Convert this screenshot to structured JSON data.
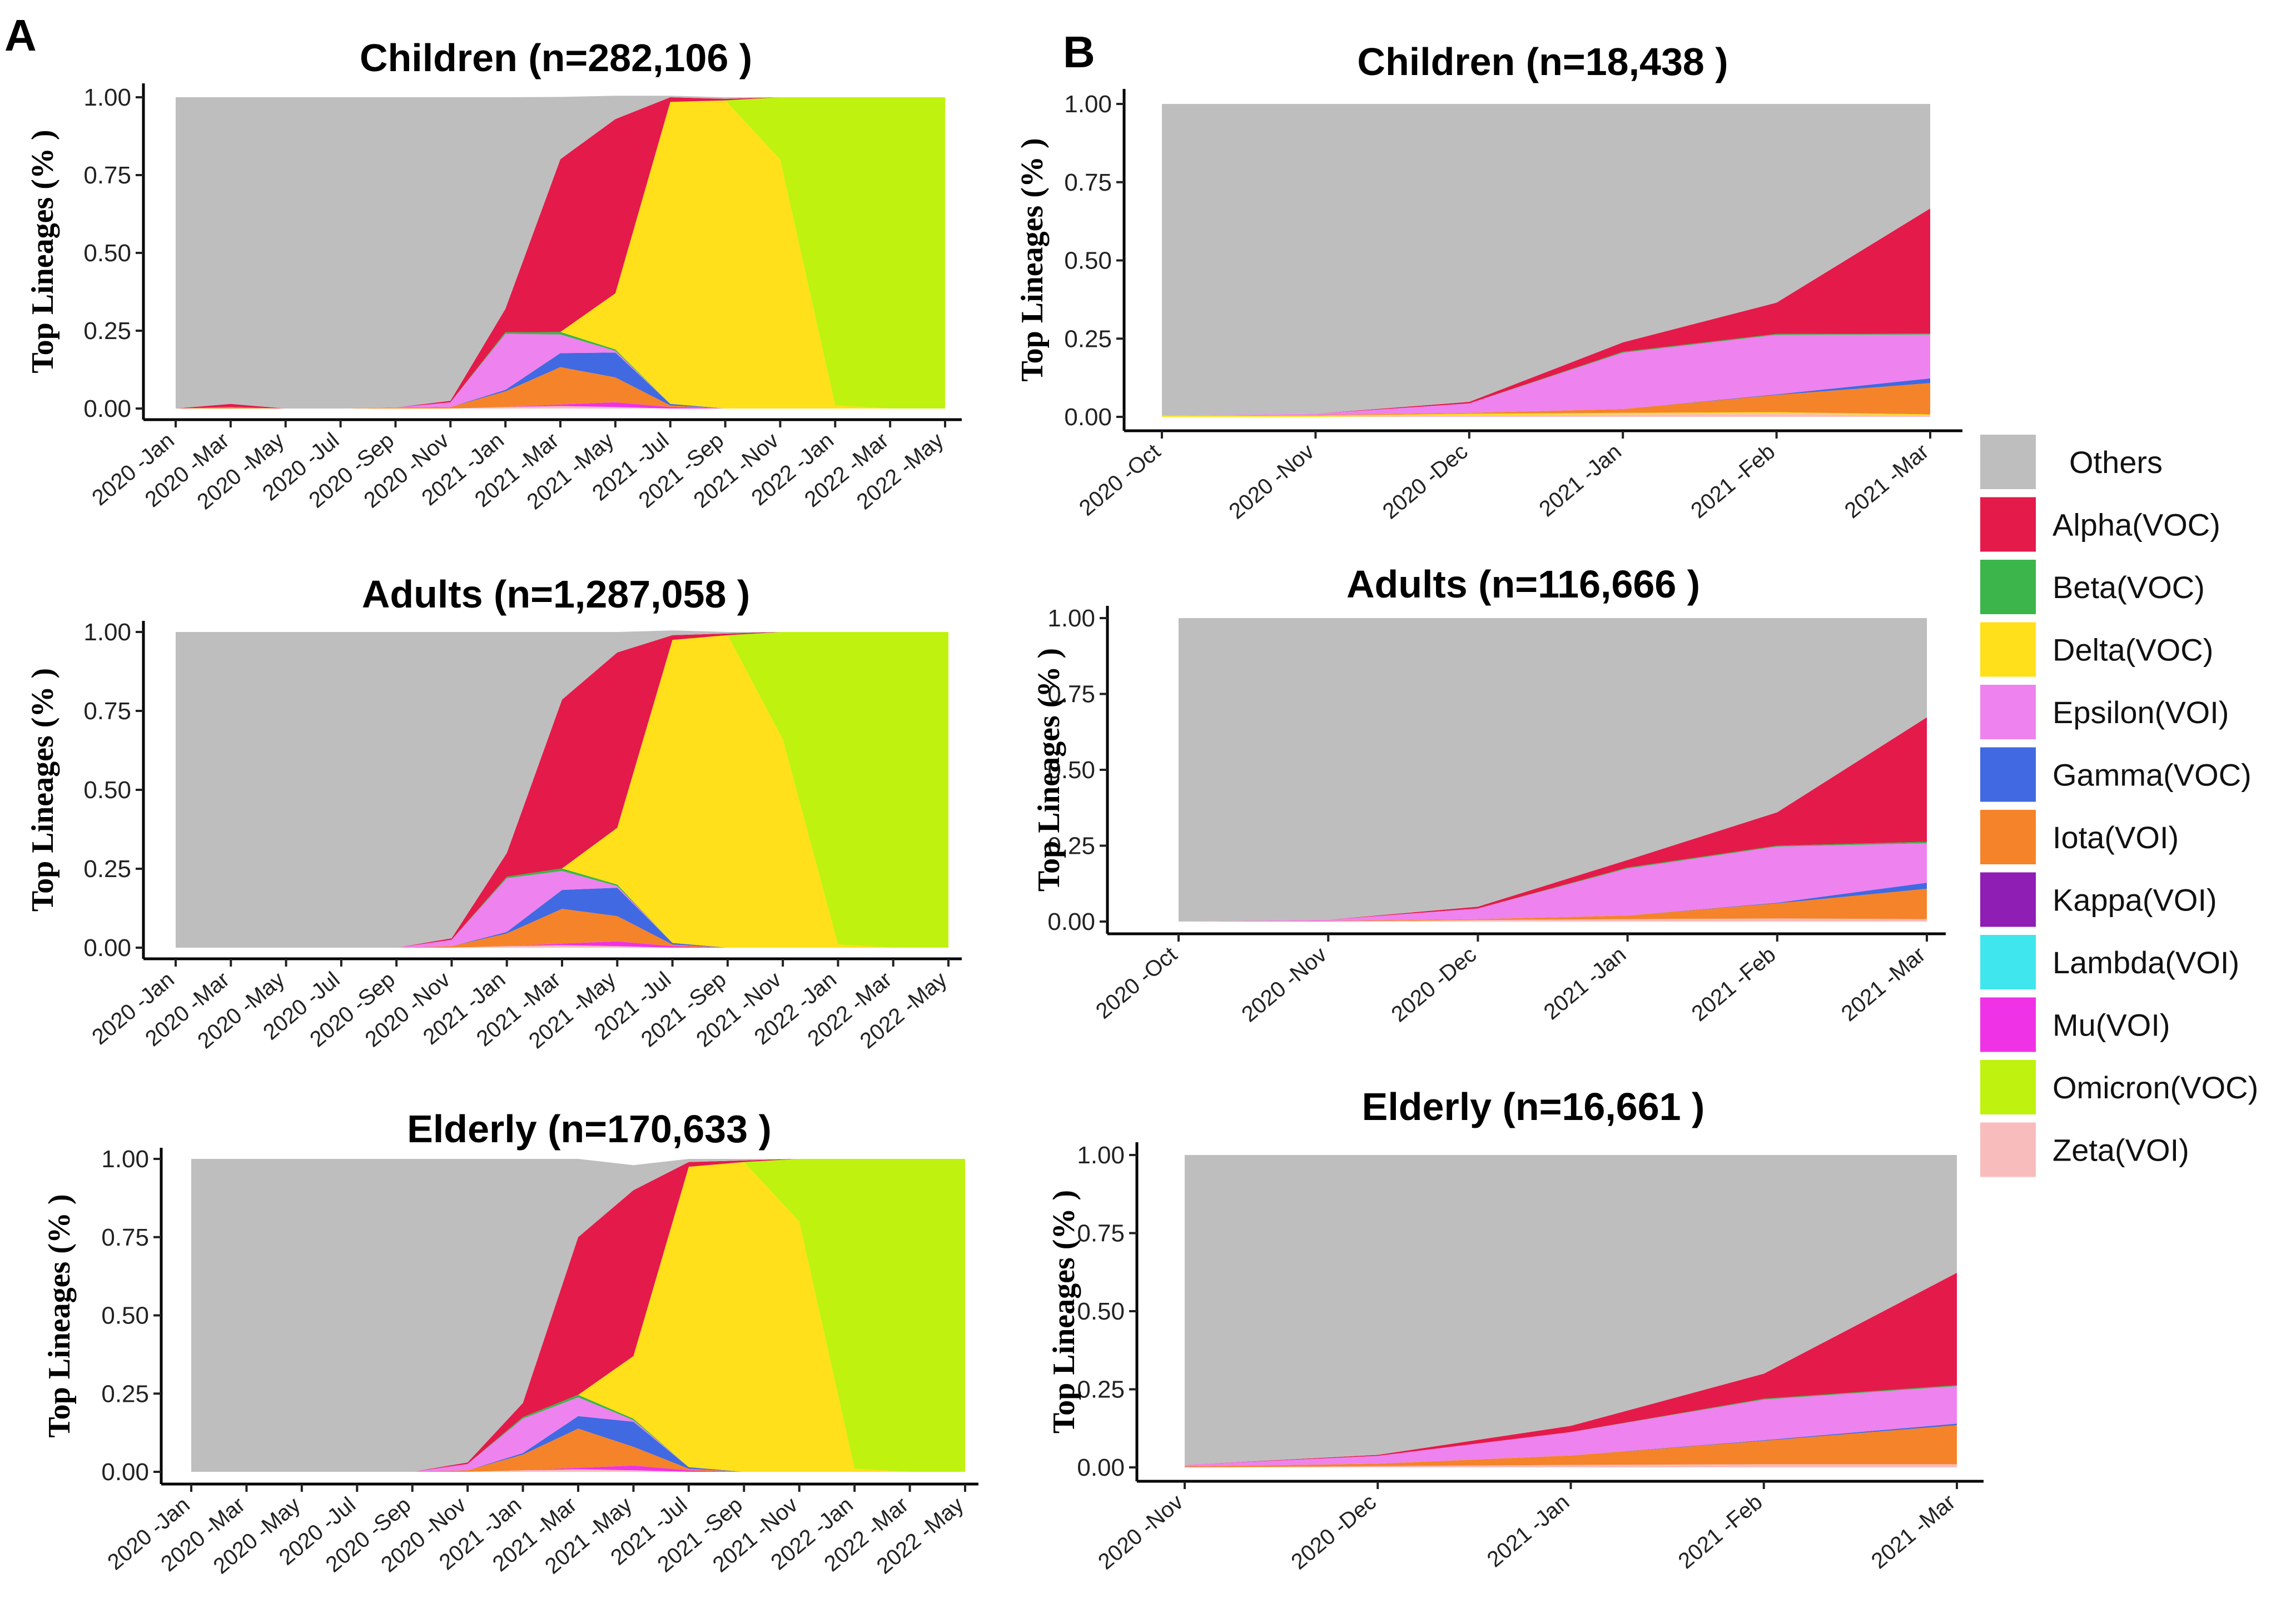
{
  "panels": {
    "A": "A",
    "B": "B"
  },
  "series_colors": {
    "Others": "#bebebe",
    "Alpha(VOC)": "#e41a4a",
    "Beta(VOC)": "#3cb54a",
    "Delta(VOC)": "#ffe01a",
    "Epsilon(VOI)": "#ee82ee",
    "Gamma(VOC)": "#4169e1",
    "Iota(VOI)": "#f5832a",
    "Kappa(VOI)": "#8e1eb4",
    "Lambda(VOI)": "#40e6ee",
    "Mu(VOI)": "#f032e6",
    "Omicron(VOC)": "#bff20f",
    "Zeta(VOI)": "#f9bcbc"
  },
  "legend": [
    "Others",
    "Alpha(VOC)",
    "Beta(VOC)",
    "Delta(VOC)",
    "Epsilon(VOI)",
    "Gamma(VOC)",
    "Iota(VOI)",
    "Kappa(VOI)",
    "Lambda(VOI)",
    "Mu(VOI)",
    "Omicron(VOC)",
    "Zeta(VOI)"
  ],
  "chart_data": [
    {
      "id": "A1",
      "type": "area",
      "stacked": true,
      "title": "Children  (n=282,106  )",
      "ylabel": "Top Lineages  (%  )",
      "xlabel": "",
      "ylim": [
        0,
        1
      ],
      "yticks": [
        "0.00",
        "0.25",
        "0.50",
        "0.75",
        "1.00"
      ],
      "categories": [
        "2020 -Jan",
        "2020 -Mar",
        "2020 -May",
        "2020 -Jul",
        "2020 -Sep",
        "2020 -Nov",
        "2021 -Jan",
        "2021 -Mar",
        "2021 -May",
        "2021 -Jul",
        "2021 -Sep",
        "2021 -Nov",
        "2022 -Jan",
        "2022 -Mar",
        "2022 -May"
      ],
      "series": [
        {
          "name": "Zeta(VOI)",
          "values": [
            0,
            0,
            0,
            0,
            0,
            0,
            0.005,
            0.008,
            0.005,
            0,
            0,
            0,
            0,
            0,
            0
          ]
        },
        {
          "name": "Mu(VOI)",
          "values": [
            0,
            0,
            0,
            0,
            0,
            0,
            0,
            0.005,
            0.015,
            0.005,
            0,
            0,
            0,
            0,
            0
          ]
        },
        {
          "name": "Iota(VOI)",
          "values": [
            0,
            0.005,
            0,
            0,
            0.003,
            0.005,
            0.05,
            0.12,
            0.08,
            0.005,
            0,
            0,
            0,
            0,
            0
          ]
        },
        {
          "name": "Gamma(VOC)",
          "values": [
            0,
            0,
            0,
            0,
            0,
            0,
            0.005,
            0.045,
            0.08,
            0.005,
            0,
            0,
            0,
            0,
            0
          ]
        },
        {
          "name": "Epsilon(VOI)",
          "values": [
            0,
            0,
            0,
            0,
            0,
            0.015,
            0.18,
            0.06,
            0.005,
            0,
            0,
            0,
            0,
            0,
            0
          ]
        },
        {
          "name": "Beta(VOC)",
          "values": [
            0,
            0,
            0,
            0,
            0,
            0,
            0.005,
            0.008,
            0.005,
            0,
            0,
            0,
            0,
            0,
            0
          ]
        },
        {
          "name": "Delta(VOC)",
          "values": [
            0,
            0,
            0,
            0,
            0,
            0,
            0,
            0,
            0.18,
            0.97,
            0.99,
            0.8,
            0.01,
            0,
            0
          ]
        },
        {
          "name": "Omicron(VOC)",
          "values": [
            0,
            0,
            0,
            0,
            0,
            0,
            0,
            0,
            0,
            0,
            0,
            0.2,
            0.99,
            1,
            1
          ]
        },
        {
          "name": "Alpha(VOC)",
          "values": [
            0,
            0.01,
            0,
            0,
            0,
            0.005,
            0.075,
            0.555,
            0.56,
            0.015,
            0.005,
            0,
            0,
            0,
            0
          ]
        },
        {
          "name": "Others",
          "values": [
            1,
            0.985,
            1,
            1,
            0.997,
            0.975,
            0.68,
            0.2,
            0.075,
            0.005,
            0.005,
            0,
            0,
            0,
            0
          ]
        }
      ]
    },
    {
      "id": "A2",
      "type": "area",
      "stacked": true,
      "title": "Adults (n=1,287,058 )",
      "ylabel": "Top Lineages  (%  )",
      "xlabel": "",
      "ylim": [
        0,
        1
      ],
      "yticks": [
        "0.00",
        "0.25",
        "0.50",
        "0.75",
        "1.00"
      ],
      "categories": [
        "2020 -Jan",
        "2020 -Mar",
        "2020 -May",
        "2020 -Jul",
        "2020 -Sep",
        "2020 -Nov",
        "2021 -Jan",
        "2021 -Mar",
        "2021 -May",
        "2021 -Jul",
        "2021 -Sep",
        "2021 -Nov",
        "2022 -Jan",
        "2022 -Mar",
        "2022 -May"
      ],
      "series": [
        {
          "name": "Zeta(VOI)",
          "values": [
            0,
            0,
            0,
            0,
            0,
            0,
            0.005,
            0.008,
            0.005,
            0,
            0,
            0,
            0,
            0,
            0
          ]
        },
        {
          "name": "Mu(VOI)",
          "values": [
            0,
            0,
            0,
            0,
            0,
            0,
            0,
            0.005,
            0.015,
            0.005,
            0,
            0,
            0,
            0,
            0
          ]
        },
        {
          "name": "Iota(VOI)",
          "values": [
            0,
            0,
            0,
            0,
            0,
            0.005,
            0.04,
            0.11,
            0.08,
            0.005,
            0,
            0,
            0,
            0,
            0
          ]
        },
        {
          "name": "Gamma(VOC)",
          "values": [
            0,
            0,
            0,
            0,
            0,
            0,
            0.005,
            0.06,
            0.09,
            0.005,
            0,
            0,
            0,
            0,
            0
          ]
        },
        {
          "name": "Epsilon(VOI)",
          "values": [
            0,
            0,
            0,
            0,
            0,
            0.02,
            0.17,
            0.06,
            0.005,
            0,
            0,
            0,
            0,
            0,
            0
          ]
        },
        {
          "name": "Beta(VOC)",
          "values": [
            0,
            0,
            0,
            0,
            0,
            0,
            0.005,
            0.008,
            0.005,
            0,
            0,
            0,
            0,
            0,
            0
          ]
        },
        {
          "name": "Delta(VOC)",
          "values": [
            0,
            0,
            0,
            0,
            0,
            0,
            0,
            0,
            0.18,
            0.96,
            0.99,
            0.66,
            0.01,
            0,
            0
          ]
        },
        {
          "name": "Omicron(VOC)",
          "values": [
            0,
            0,
            0,
            0,
            0,
            0,
            0,
            0,
            0,
            0,
            0,
            0.34,
            0.99,
            1,
            1
          ]
        },
        {
          "name": "Alpha(VOC)",
          "values": [
            0,
            0,
            0,
            0,
            0,
            0.005,
            0.075,
            0.535,
            0.555,
            0.015,
            0.005,
            0,
            0,
            0,
            0
          ]
        },
        {
          "name": "Others",
          "values": [
            1,
            1,
            1,
            1,
            1,
            0.97,
            0.7,
            0.214,
            0.065,
            0.015,
            0.005,
            0,
            0,
            0,
            0
          ]
        }
      ]
    },
    {
      "id": "A3",
      "type": "area",
      "stacked": true,
      "title": "Elderly (n=170,633 )",
      "ylabel": "Top Lineages  (%  )",
      "xlabel": "",
      "ylim": [
        0,
        1
      ],
      "yticks": [
        "0.00",
        "0.25",
        "0.50",
        "0.75",
        "1.00"
      ],
      "categories": [
        "2020 -Jan",
        "2020 -Mar",
        "2020 -May",
        "2020 -Jul",
        "2020 -Sep",
        "2020 -Nov",
        "2021 -Jan",
        "2021 -Mar",
        "2021 -May",
        "2021 -Jul",
        "2021 -Sep",
        "2021 -Nov",
        "2022 -Jan",
        "2022 -Mar",
        "2022 -May"
      ],
      "series": [
        {
          "name": "Zeta(VOI)",
          "values": [
            0,
            0,
            0,
            0,
            0,
            0,
            0.005,
            0.008,
            0.005,
            0,
            0,
            0,
            0,
            0,
            0
          ]
        },
        {
          "name": "Mu(VOI)",
          "values": [
            0,
            0,
            0,
            0,
            0,
            0,
            0,
            0.005,
            0.015,
            0.005,
            0,
            0,
            0,
            0,
            0
          ]
        },
        {
          "name": "Iota(VOI)",
          "values": [
            0,
            0,
            0,
            0,
            0,
            0.005,
            0.05,
            0.125,
            0.06,
            0.005,
            0,
            0,
            0,
            0,
            0
          ]
        },
        {
          "name": "Gamma(VOC)",
          "values": [
            0,
            0,
            0,
            0,
            0,
            0,
            0.005,
            0.04,
            0.08,
            0.005,
            0,
            0,
            0,
            0,
            0
          ]
        },
        {
          "name": "Epsilon(VOI)",
          "values": [
            0,
            0,
            0,
            0,
            0,
            0.02,
            0.11,
            0.06,
            0.005,
            0,
            0,
            0,
            0,
            0,
            0
          ]
        },
        {
          "name": "Beta(VOC)",
          "values": [
            0,
            0,
            0,
            0,
            0,
            0,
            0.005,
            0.008,
            0.005,
            0,
            0,
            0,
            0,
            0,
            0
          ]
        },
        {
          "name": "Delta(VOC)",
          "values": [
            0,
            0,
            0,
            0,
            0,
            0,
            0,
            0,
            0.2,
            0.96,
            0.99,
            0.8,
            0.01,
            0,
            0
          ]
        },
        {
          "name": "Omicron(VOC)",
          "values": [
            0,
            0,
            0,
            0,
            0,
            0,
            0,
            0,
            0,
            0,
            0,
            0.2,
            0.99,
            1,
            1
          ]
        },
        {
          "name": "Alpha(VOC)",
          "values": [
            0,
            0,
            0,
            0,
            0,
            0.005,
            0.045,
            0.504,
            0.53,
            0.015,
            0.005,
            0,
            0,
            0,
            0
          ]
        },
        {
          "name": "Others",
          "values": [
            1,
            1,
            1,
            1,
            1,
            0.97,
            0.78,
            0.25,
            0.08,
            0.01,
            0.005,
            0,
            0,
            0,
            0
          ]
        }
      ]
    },
    {
      "id": "B1",
      "type": "area",
      "stacked": true,
      "title": "Children  (n=18,438  )",
      "ylabel": "Top Lineages  (%  )",
      "xlabel": "",
      "ylim": [
        0,
        1
      ],
      "yticks": [
        "0.00",
        "0.25",
        "0.50",
        "0.75",
        "1.00"
      ],
      "categories": [
        "2020 -Oct",
        "2020 -Nov",
        "2020 -Dec",
        "2021 -Jan",
        "2021 -Feb",
        "2021 -Mar"
      ],
      "series": [
        {
          "name": "Zeta(VOI)",
          "values": [
            0,
            0,
            0.005,
            0.008,
            0.01,
            0.005
          ]
        },
        {
          "name": "Delta(VOC)",
          "values": [
            0.004,
            0.004,
            0.005,
            0.005,
            0.005,
            0.003
          ]
        },
        {
          "name": "Iota(VOI)",
          "values": [
            0,
            0.002,
            0.003,
            0.012,
            0.055,
            0.1
          ]
        },
        {
          "name": "Gamma(VOC)",
          "values": [
            0,
            0,
            0,
            0,
            0.002,
            0.015
          ]
        },
        {
          "name": "Epsilon(VOI)",
          "values": [
            0,
            0.004,
            0.03,
            0.18,
            0.19,
            0.14
          ]
        },
        {
          "name": "Beta(VOC)",
          "values": [
            0,
            0,
            0,
            0.003,
            0.003,
            0.003
          ]
        },
        {
          "name": "Alpha(VOC)",
          "values": [
            0,
            0,
            0.005,
            0.03,
            0.1,
            0.4
          ]
        },
        {
          "name": "Others",
          "values": [
            0.996,
            0.99,
            0.952,
            0.762,
            0.635,
            0.334
          ]
        }
      ]
    },
    {
      "id": "B2",
      "type": "area",
      "stacked": true,
      "title": "Adults (n=116,666 )",
      "ylabel": "Top Lineages  (%  )",
      "xlabel": "",
      "ylim": [
        0,
        1
      ],
      "yticks": [
        "0.00",
        "0.25",
        "0.50",
        "0.75",
        "1.00"
      ],
      "categories": [
        "2020 -Oct",
        "2020 -Nov",
        "2020 -Dec",
        "2021 -Jan",
        "2021 -Feb",
        "2021 -Mar"
      ],
      "series": [
        {
          "name": "Zeta(VOI)",
          "values": [
            0,
            0,
            0.005,
            0.008,
            0.01,
            0.008
          ]
        },
        {
          "name": "Iota(VOI)",
          "values": [
            0,
            0.002,
            0.003,
            0.012,
            0.05,
            0.1
          ]
        },
        {
          "name": "Gamma(VOC)",
          "values": [
            0,
            0,
            0,
            0,
            0.002,
            0.02
          ]
        },
        {
          "name": "Epsilon(VOI)",
          "values": [
            0,
            0.004,
            0.035,
            0.155,
            0.185,
            0.13
          ]
        },
        {
          "name": "Beta(VOC)",
          "values": [
            0,
            0,
            0,
            0.003,
            0.003,
            0.005
          ]
        },
        {
          "name": "Alpha(VOC)",
          "values": [
            0,
            0,
            0.006,
            0.025,
            0.11,
            0.41
          ]
        },
        {
          "name": "Others",
          "values": [
            1,
            0.994,
            0.951,
            0.797,
            0.64,
            0.327
          ]
        }
      ]
    },
    {
      "id": "B3",
      "type": "area",
      "stacked": true,
      "title": "Elderly (n=16,661 )",
      "ylabel": "Top Lineages  (%  )",
      "xlabel": "",
      "ylim": [
        0,
        1
      ],
      "yticks": [
        "0.00",
        "0.25",
        "0.50",
        "0.75",
        "1.00"
      ],
      "categories": [
        "2020 -Nov",
        "2020 -Dec",
        "2021 -Jan",
        "2021 -Feb",
        "2021 -Mar"
      ],
      "series": [
        {
          "name": "Zeta(VOI)",
          "values": [
            0,
            0.004,
            0.008,
            0.01,
            0.01
          ]
        },
        {
          "name": "Iota(VOI)",
          "values": [
            0.003,
            0.008,
            0.03,
            0.075,
            0.125
          ]
        },
        {
          "name": "Gamma(VOC)",
          "values": [
            0,
            0,
            0,
            0.002,
            0.005
          ]
        },
        {
          "name": "Epsilon(VOI)",
          "values": [
            0.005,
            0.025,
            0.075,
            0.13,
            0.12
          ]
        },
        {
          "name": "Beta(VOC)",
          "values": [
            0,
            0,
            0,
            0.003,
            0.003
          ]
        },
        {
          "name": "Alpha(VOC)",
          "values": [
            0,
            0.003,
            0.02,
            0.08,
            0.36
          ]
        },
        {
          "name": "Others",
          "values": [
            0.992,
            0.96,
            0.867,
            0.7,
            0.377
          ]
        }
      ]
    }
  ]
}
